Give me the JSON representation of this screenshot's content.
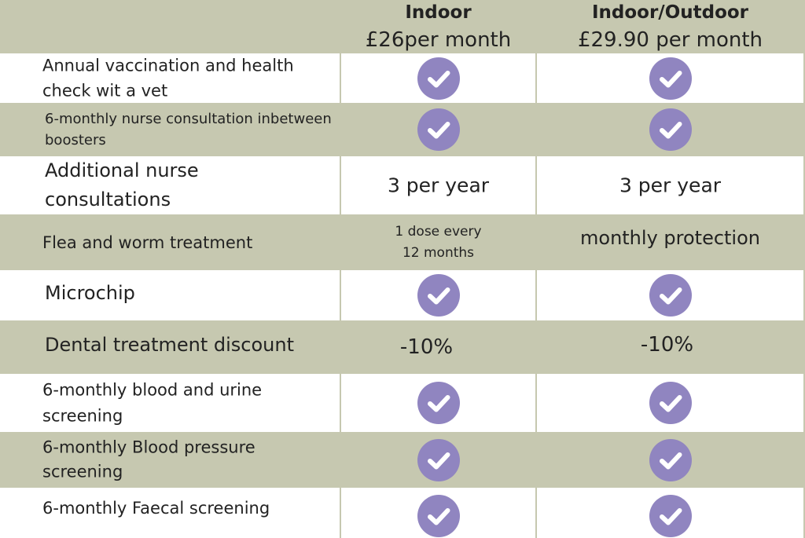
{
  "columns": [
    {
      "title": "Indoor",
      "price": "£26per month"
    },
    {
      "title": "Indoor/Outdoor",
      "price": "£29.90 per month"
    }
  ],
  "rows": [
    {
      "label": "Annual vaccination and health check wit a vet",
      "indoor": "check",
      "outdoor": "check"
    },
    {
      "label": "6-monthly nurse consultation inbetween boosters",
      "indoor": "check",
      "outdoor": "check"
    },
    {
      "label": "Additional nurse consultations",
      "indoor": "3 per year",
      "outdoor": "3 per year"
    },
    {
      "label": "Flea and worm treatment",
      "indoor": "1 dose every 12 months",
      "outdoor": "monthly protection"
    },
    {
      "label": "Microchip",
      "indoor": "check",
      "outdoor": "check"
    },
    {
      "label": "Dental treatment discount",
      "indoor": "-10%",
      "outdoor": "-10%"
    },
    {
      "label": "6-monthly blood and urine screening",
      "indoor": "check",
      "outdoor": "check"
    },
    {
      "label": "6-monthly Blood pressure screening",
      "indoor": "check",
      "outdoor": "check"
    },
    {
      "label": "6-monthly Faecal screening",
      "indoor": "check",
      "outdoor": "check"
    }
  ],
  "colors": {
    "background": "#c6c8b0",
    "cell": "#ffffff",
    "check_fill": "#9085c0",
    "check_mark": "#ffffff"
  },
  "icon": "checkmark-circle-icon"
}
